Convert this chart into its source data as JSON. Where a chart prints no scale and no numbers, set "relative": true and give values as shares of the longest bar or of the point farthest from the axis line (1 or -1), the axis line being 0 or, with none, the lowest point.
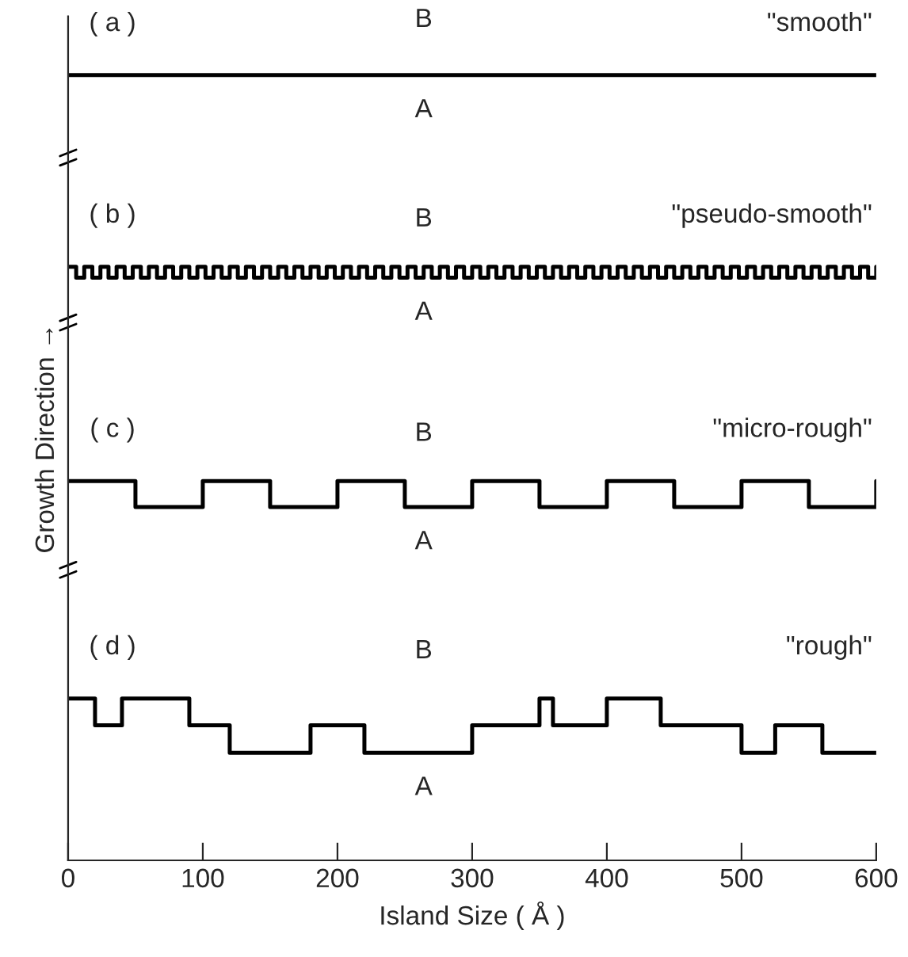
{
  "chart_data": {
    "type": "step",
    "xlabel": "Island Size ( Å )",
    "ylabel": "Growth Direction →",
    "relative": true,
    "xlim": [
      0,
      600
    ],
    "xticks": [
      0,
      100,
      200,
      300,
      400,
      500,
      600
    ],
    "tick_labels": "x",
    "grid": false,
    "series": [
      {
        "color": "#000000",
        "x": [
          0,
          600
        ],
        "values": [
          1.0,
          1.0
        ]
      },
      {
        "color": "#000000",
        "x": [
          0,
          6,
          12,
          18,
          24,
          30,
          36,
          42,
          48,
          54,
          60,
          66,
          72,
          78,
          84,
          90,
          96,
          102,
          108,
          114,
          120,
          126,
          132,
          138,
          144,
          150,
          156,
          162,
          168,
          174,
          180,
          186,
          192,
          198,
          204,
          210,
          216,
          222,
          228,
          234,
          240,
          246,
          252,
          258,
          264,
          270,
          276,
          282,
          288,
          294,
          300,
          306,
          312,
          318,
          324,
          330,
          336,
          342,
          348,
          354,
          360,
          366,
          372,
          378,
          384,
          390,
          396,
          402,
          408,
          414,
          420,
          426,
          432,
          438,
          444,
          450,
          456,
          462,
          468,
          474,
          480,
          486,
          492,
          498,
          504,
          510,
          516,
          522,
          528,
          534,
          540,
          546,
          552,
          558,
          564,
          570,
          576,
          582,
          588,
          594,
          600
        ],
        "values": [
          0.756,
          0.742,
          0.756,
          0.742,
          0.756,
          0.742,
          0.756,
          0.742,
          0.756,
          0.742,
          0.756,
          0.742,
          0.756,
          0.742,
          0.756,
          0.742,
          0.756,
          0.742,
          0.756,
          0.742,
          0.756,
          0.742,
          0.756,
          0.742,
          0.756,
          0.742,
          0.756,
          0.742,
          0.756,
          0.742,
          0.756,
          0.742,
          0.756,
          0.742,
          0.756,
          0.742,
          0.756,
          0.742,
          0.756,
          0.742,
          0.756,
          0.742,
          0.756,
          0.742,
          0.756,
          0.742,
          0.756,
          0.742,
          0.756,
          0.742,
          0.756,
          0.742,
          0.756,
          0.742,
          0.756,
          0.742,
          0.756,
          0.742,
          0.756,
          0.742,
          0.756,
          0.742,
          0.756,
          0.742,
          0.756,
          0.742,
          0.756,
          0.742,
          0.756,
          0.742,
          0.756,
          0.742,
          0.756,
          0.742,
          0.756,
          0.742,
          0.756,
          0.742,
          0.756,
          0.742,
          0.756,
          0.742,
          0.756,
          0.742,
          0.756,
          0.742,
          0.756,
          0.742,
          0.756,
          0.742,
          0.756,
          0.742,
          0.756,
          0.742,
          0.756,
          0.742,
          0.756,
          0.742,
          0.756,
          0.742,
          0.756
        ]
      },
      {
        "color": "#000000",
        "x": [
          0,
          50,
          100,
          150,
          200,
          250,
          300,
          350,
          400,
          450,
          500,
          550,
          600
        ],
        "values": [
          0.483,
          0.45,
          0.483,
          0.45,
          0.483,
          0.45,
          0.483,
          0.45,
          0.483,
          0.45,
          0.483,
          0.45,
          0.483
        ]
      },
      {
        "color": "#000000",
        "x": [
          0,
          20,
          40,
          90,
          120,
          180,
          220,
          300,
          350,
          360,
          400,
          440,
          500,
          525,
          560,
          600
        ],
        "values": [
          0.206,
          0.172,
          0.206,
          0.172,
          0.137,
          0.172,
          0.137,
          0.172,
          0.206,
          0.172,
          0.206,
          0.172,
          0.137,
          0.172,
          0.137,
          0.137
        ]
      }
    ],
    "annotations": [
      "( a )",
      "B",
      "A",
      "\"smooth\"",
      "( b )",
      "B",
      "A",
      "\"pseudo-smooth\"",
      "( c )",
      "B",
      "A",
      "\"micro-rough\"",
      "( d )",
      "B",
      "A",
      "\"rough\""
    ]
  }
}
